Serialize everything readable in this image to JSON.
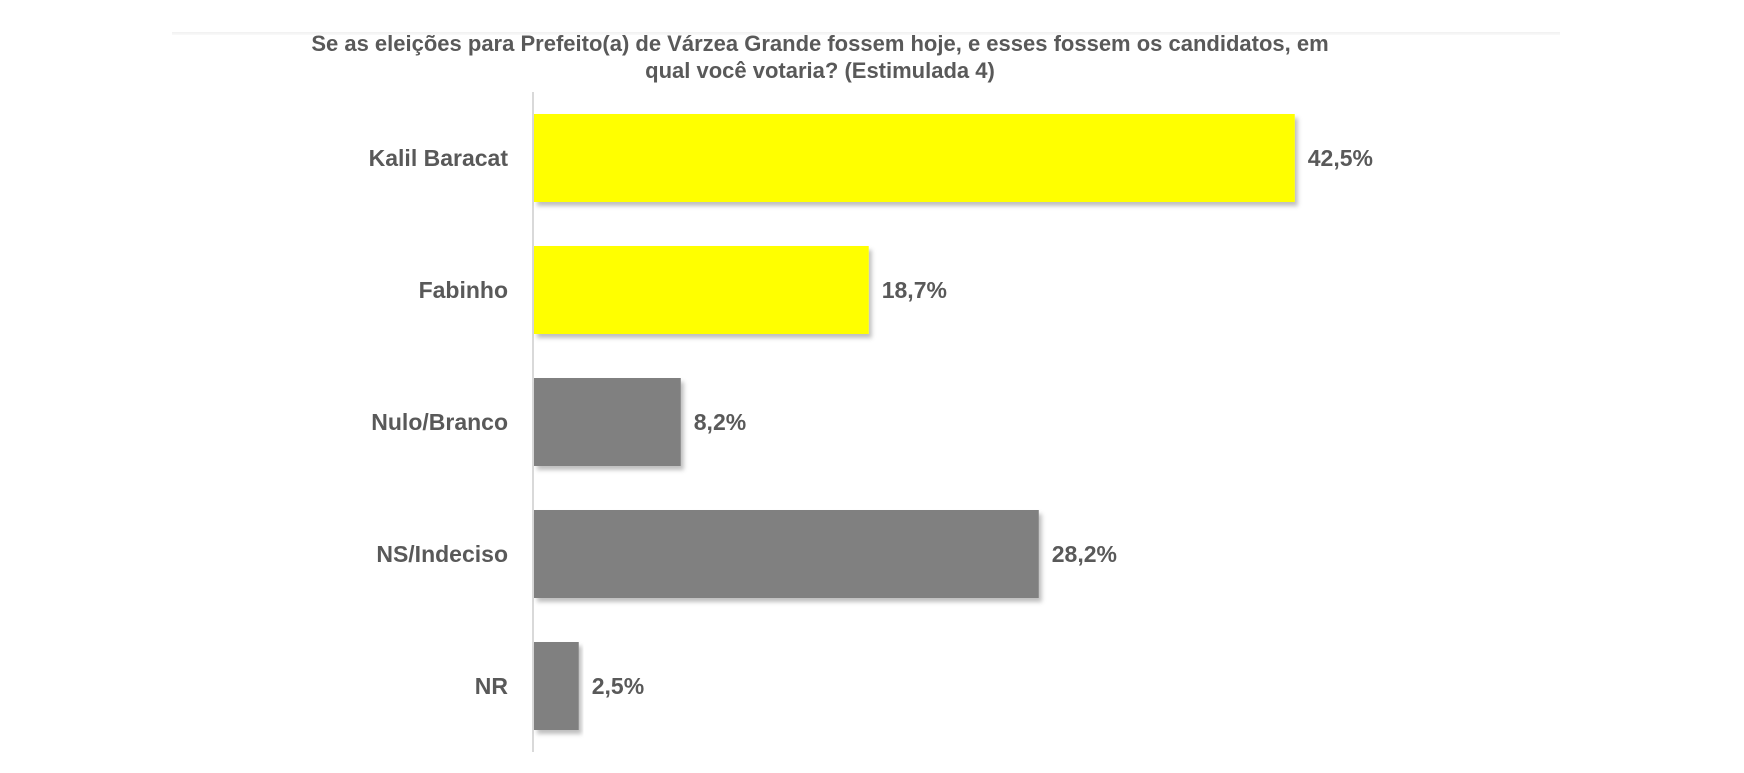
{
  "chart_data": {
    "type": "bar",
    "orientation": "horizontal",
    "title": "Se as eleições para Prefeito(a) de Várzea Grande fossem hoje, e esses fossem os candidatos, em qual você votaria? (Estimulada 4)",
    "title_lines": [
      "Se as eleições para Prefeito(a) de Várzea Grande fossem hoje, e esses fossem os candidatos, em",
      "qual você votaria? (Estimulada 4)"
    ],
    "categories": [
      "Kalil Baracat",
      "Fabinho",
      "Nulo/Branco",
      "NS/Indeciso",
      "NR"
    ],
    "values": [
      42.5,
      18.7,
      8.2,
      28.2,
      2.5
    ],
    "value_labels": [
      "42,5%",
      "18,7%",
      "8,2%",
      "28,2%",
      "2,5%"
    ],
    "bar_colors": [
      "#ffff00",
      "#ffff00",
      "#808080",
      "#808080",
      "#808080"
    ],
    "xlim": [
      0,
      50
    ],
    "grid": false,
    "legend": "none"
  }
}
